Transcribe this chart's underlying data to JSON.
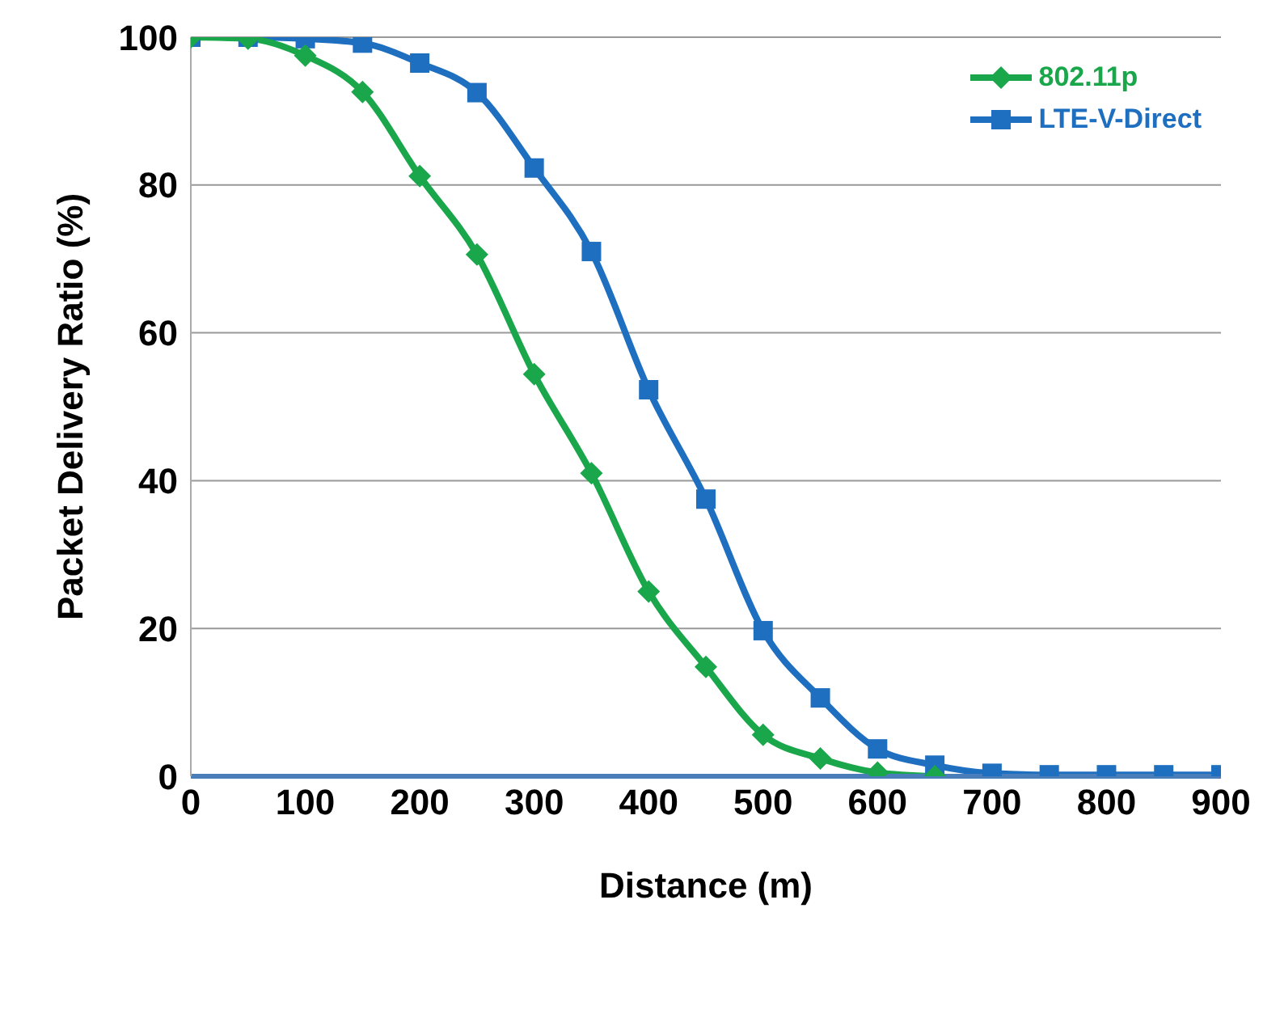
{
  "chart_data": {
    "type": "line",
    "xlabel": "Distance (m)",
    "ylabel": "Packet Delivery Ratio (%)",
    "xlim": [
      0,
      900
    ],
    "xticks": [
      0,
      100,
      200,
      300,
      400,
      500,
      600,
      700,
      800,
      900
    ],
    "ylim": [
      0,
      100
    ],
    "yticks": [
      0,
      20,
      40,
      60,
      80,
      100
    ],
    "grid": "y",
    "legend": "top right",
    "series": [
      {
        "name": "802.11p",
        "color": "#1aa64a",
        "marker": "diamond",
        "x": [
          0,
          50,
          100,
          150,
          200,
          250,
          300,
          350,
          400,
          450,
          500,
          550,
          600,
          650
        ],
        "values": [
          100,
          99.8,
          97.5,
          92.6,
          81.2,
          70.6,
          54.4,
          41,
          25,
          14.8,
          5.6,
          2.4,
          0.5,
          0
        ]
      },
      {
        "name": "LTE-V-Direct",
        "color": "#1f6fc0",
        "marker": "square",
        "x": [
          0,
          50,
          100,
          150,
          200,
          250,
          300,
          350,
          400,
          450,
          500,
          550,
          600,
          650,
          700,
          750,
          800,
          850,
          900
        ],
        "values": [
          100,
          100,
          99.8,
          99.2,
          96.5,
          92.5,
          82.3,
          71,
          52.3,
          37.5,
          19.7,
          10.6,
          3.7,
          1.5,
          0.4,
          0.2,
          0.2,
          0.2,
          0.2
        ]
      }
    ]
  }
}
